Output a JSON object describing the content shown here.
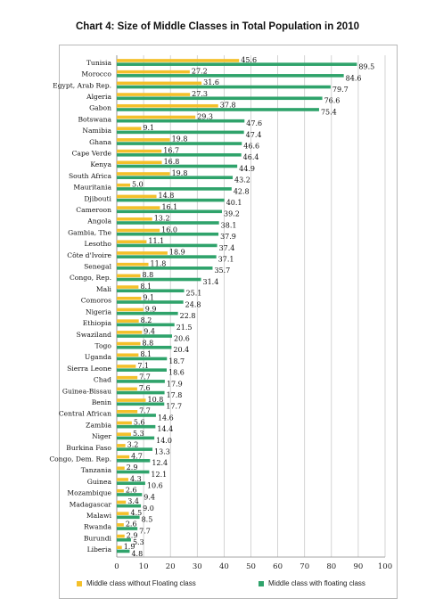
{
  "chart_data": {
    "type": "bar",
    "orientation": "horizontal",
    "title": "Chart 4: Size of Middle Classes in Total Population in 2010",
    "categories": [
      "Tunisia",
      "Morocco",
      "Egypt, Arab Rep.",
      "Algeria",
      "Gabon",
      "Botswana",
      "Namibia",
      "Ghana",
      "Cape Verde",
      "Kenya",
      "South Africa",
      "Mauritania",
      "Djibouti",
      "Cameroon",
      "Angola",
      "Gambia, The",
      "Lesotho",
      "Côte d'Ivoire",
      "Senegal",
      "Congo, Rep.",
      "Mali",
      "Comoros",
      "Nigeria",
      "Ethiopia",
      "Swaziland",
      "Togo",
      "Uganda",
      "Sierra Leone",
      "Chad",
      "Guinea-Bissau",
      "Benin",
      "Central African",
      "Zambia",
      "Niger",
      "Burkina Faso",
      "Congo, Dem. Rep.",
      "Tanzania",
      "Guinea",
      "Mozambique",
      "Madagascar",
      "Malawi",
      "Rwanda",
      "Burundi",
      "Liberia"
    ],
    "series": [
      {
        "name": "Middle class without Floating class",
        "color": "#f4c02a",
        "values": [
          45.6,
          27.2,
          31.6,
          27.3,
          37.8,
          29.3,
          9.1,
          19.8,
          16.7,
          16.8,
          19.8,
          5.0,
          14.8,
          16.1,
          13.2,
          16.0,
          11.1,
          18.9,
          11.8,
          8.8,
          8.1,
          9.1,
          9.9,
          8.2,
          9.4,
          8.8,
          8.1,
          7.1,
          7.7,
          7.6,
          10.8,
          7.7,
          5.6,
          5.3,
          3.2,
          4.7,
          2.9,
          4.3,
          2.6,
          3.4,
          4.5,
          2.6,
          2.9,
          1.9
        ]
      },
      {
        "name": "Middle class with floating class",
        "color": "#2fa36b",
        "values": [
          89.5,
          84.6,
          79.7,
          76.6,
          75.4,
          47.6,
          47.4,
          46.6,
          46.4,
          44.9,
          43.2,
          42.8,
          40.1,
          39.2,
          38.1,
          37.9,
          37.4,
          37.1,
          35.7,
          31.4,
          25.1,
          24.8,
          22.8,
          21.5,
          20.6,
          20.4,
          18.7,
          18.6,
          17.9,
          17.8,
          17.7,
          14.6,
          14.4,
          14.0,
          13.3,
          12.4,
          12.1,
          10.6,
          9.4,
          9.0,
          8.5,
          7.7,
          5.3,
          4.8
        ]
      }
    ],
    "value_labels": [
      [
        "45.6",
        "27.2",
        "31.6",
        "27.3",
        "37.8",
        "29.3",
        "9.1",
        "19.8",
        "16.7",
        "16.8",
        "19.8",
        "5.0",
        "14.8",
        "16.1",
        "13.2",
        "16.0",
        "11.1",
        "18.9",
        "11.8",
        "8.8",
        "8.1",
        "9.1",
        "9.9",
        "8.2",
        "9.4",
        "8.8",
        "8.1",
        "7.1",
        "7.7",
        "7.6",
        "10.8",
        "7.7",
        "5.6",
        "5.3",
        "3.2",
        "4.7",
        "2.9",
        "4.3",
        "2.6",
        "3.4",
        "4.5",
        "2.6",
        "2.9",
        "1.9"
      ],
      [
        "89.5",
        "84.6",
        "79.7",
        "76.6",
        "75.4",
        "47.6",
        "47.4",
        "46.6",
        "46.4",
        "44.9",
        "43.2",
        "42.8",
        "40.1",
        "39.2",
        "38.1",
        "37.9",
        "37.4",
        "37.1",
        "35.7",
        "31.4",
        "25.1",
        "24.8",
        "22.8",
        "21.5",
        "20.6",
        "20.4",
        "18.7",
        "18.6",
        "17.9",
        "17.8",
        "17.7",
        "14.6",
        "14.4",
        "14.0",
        "13.3",
        "12.4",
        "12.1",
        "10.6",
        "9.4",
        "9.0",
        "8.5",
        "7.7",
        "5.3",
        "4.8"
      ]
    ],
    "xlim": [
      0,
      100
    ],
    "xticks": [
      "0",
      "10",
      "20",
      "30",
      "40",
      "50",
      "60",
      "70",
      "80",
      "90",
      "100"
    ],
    "grid": true,
    "legend_position": "bottom"
  }
}
